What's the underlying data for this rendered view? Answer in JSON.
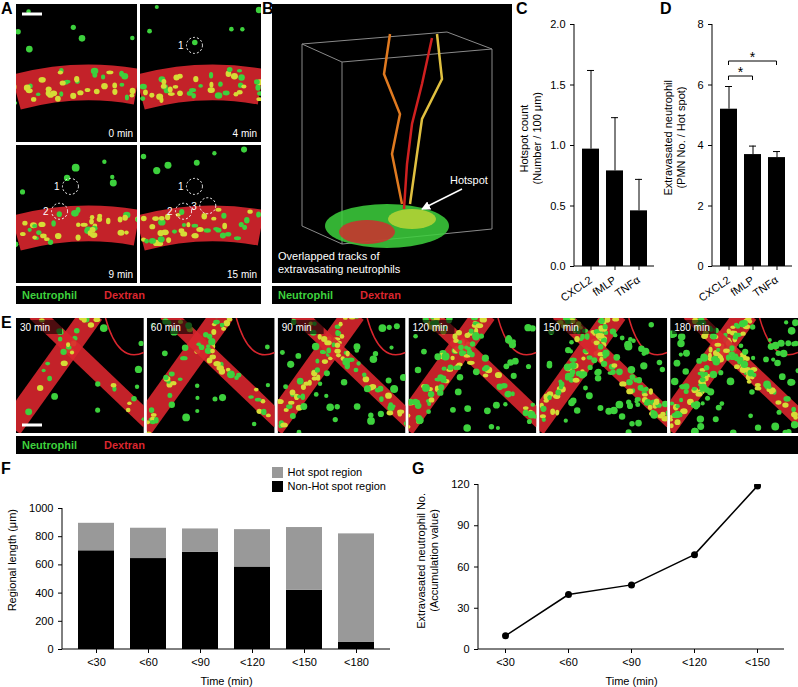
{
  "figure_panels": [
    {
      "label": "A",
      "type": "image",
      "frames": [
        {
          "time": "0 min",
          "markers": []
        },
        {
          "time": "4 min",
          "markers": [
            "1"
          ]
        },
        {
          "time": "9 min",
          "markers": [
            "1",
            "2"
          ]
        },
        {
          "time": "15 min",
          "markers": [
            "1",
            "2",
            "3"
          ]
        }
      ],
      "channels": [
        {
          "name": "Neutrophil",
          "color": "#3dd13d"
        },
        {
          "name": "Dextran",
          "color": "#d8262e"
        }
      ]
    },
    {
      "label": "B",
      "type": "image",
      "annotation": "Hotspot",
      "caption": [
        "Overlapped tracks of",
        "extravasating neutrophils"
      ],
      "channels": [
        {
          "name": "Neutrophil",
          "color": "#3dd13d"
        },
        {
          "name": "Dextran",
          "color": "#d8262e"
        }
      ]
    },
    {
      "label": "E",
      "type": "image",
      "frames": [
        {
          "time": "30 min"
        },
        {
          "time": "60 min"
        },
        {
          "time": "90 min"
        },
        {
          "time": "120 min"
        },
        {
          "time": "150 min"
        },
        {
          "time": "180 min"
        }
      ],
      "channels": [
        {
          "name": "Neutrophil",
          "color": "#3dd13d"
        },
        {
          "name": "Dextran",
          "color": "#d8262e"
        }
      ]
    }
  ],
  "chart_data": [
    {
      "panel": "C",
      "type": "bar",
      "categories": [
        "CXCL2",
        "fMLP",
        "TNFα"
      ],
      "values": [
        0.97,
        0.79,
        0.46
      ],
      "errors": [
        0.65,
        0.44,
        0.26
      ],
      "color": "#000000",
      "ylabel": [
        "Hotspot count",
        "(Number / 100 μm)"
      ],
      "ylim": [
        0,
        2
      ],
      "yticks": [
        {
          "value": 0,
          "label": "0.0"
        },
        0.5,
        {
          "value": 1,
          "label": "1.0"
        },
        1.5,
        {
          "value": 2,
          "label": "2.0"
        }
      ]
    },
    {
      "panel": "D",
      "type": "bar",
      "categories": [
        "CXCL2",
        "fMLP",
        "TNFα"
      ],
      "values": [
        5.2,
        3.7,
        3.6
      ],
      "errors": [
        0.75,
        0.28,
        0.2
      ],
      "color": "#000000",
      "ylabel": [
        "Extravasated neutrophil",
        "(PMN No. / Hot spot)"
      ],
      "ylim": [
        0,
        8
      ],
      "yticks": [
        0,
        2,
        4,
        6,
        8
      ],
      "annotations": [
        {
          "from": "CXCL2",
          "to": "fMLP",
          "text": "*"
        },
        {
          "from": "CXCL2",
          "to": "TNFα",
          "text": "*"
        }
      ]
    },
    {
      "panel": "F",
      "type": "bar",
      "stacked": true,
      "categories": [
        "<30",
        "<60",
        "<90",
        "<120",
        "<150",
        "<180"
      ],
      "series": [
        {
          "name": "Non-Hot spot region",
          "color": "#000000",
          "values": [
            700,
            645,
            690,
            585,
            420,
            50
          ]
        },
        {
          "name": "Hot spot region",
          "color": "#999999",
          "values": [
            195,
            215,
            165,
            265,
            445,
            770
          ]
        }
      ],
      "ylabel": [
        "Regional length (μm)"
      ],
      "xlabel": "Time (min)",
      "ylim": [
        0,
        1000
      ],
      "yticks": [
        0,
        200,
        400,
        600,
        800,
        1000
      ],
      "legend": "top-right"
    },
    {
      "panel": "G",
      "type": "line",
      "marker": "circle",
      "categories": [
        "<30",
        "<60",
        "<90",
        "<120",
        "<150"
      ],
      "values": [
        10,
        40,
        47,
        69,
        119
      ],
      "color": "#000000",
      "ylabel": [
        "Extravasated neutrophil No.",
        "(Accumulation value)"
      ],
      "xlabel": "Time (min)",
      "ylim": [
        0,
        120
      ],
      "yticks": [
        0,
        30,
        60,
        90,
        120
      ]
    }
  ]
}
